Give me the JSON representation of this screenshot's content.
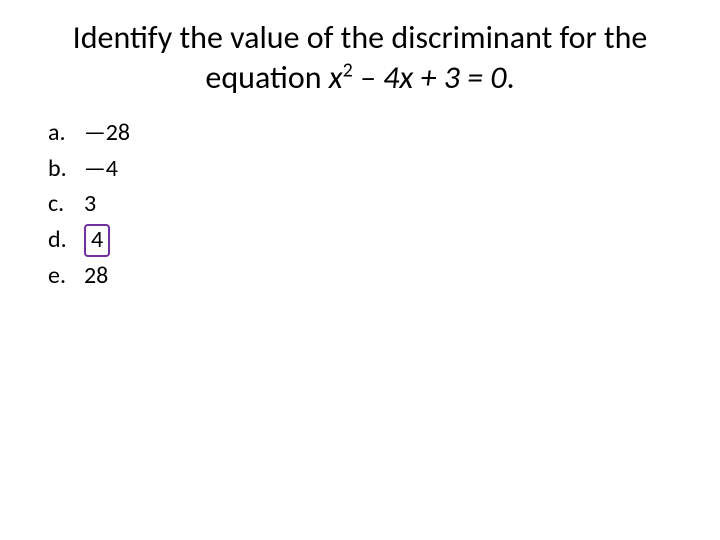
{
  "title": {
    "prefix": "Identify the value of the discriminant for the equation ",
    "equation_var": "x",
    "equation_sup": "2",
    "equation_rest": " – 4x + 3 = 0",
    "suffix": "."
  },
  "options": [
    {
      "letter": "a.",
      "value": "—28",
      "highlighted": false
    },
    {
      "letter": "b.",
      "value": "—4",
      "highlighted": false
    },
    {
      "letter": "c.",
      "value": "3",
      "highlighted": false
    },
    {
      "letter": "d.",
      "value": "4",
      "highlighted": true
    },
    {
      "letter": "e.",
      "value": "28",
      "highlighted": false
    }
  ],
  "highlight_color": "#7030a0",
  "background_color": "#ffffff",
  "text_color": "#000000",
  "title_fontsize": 32,
  "option_fontsize": 24
}
